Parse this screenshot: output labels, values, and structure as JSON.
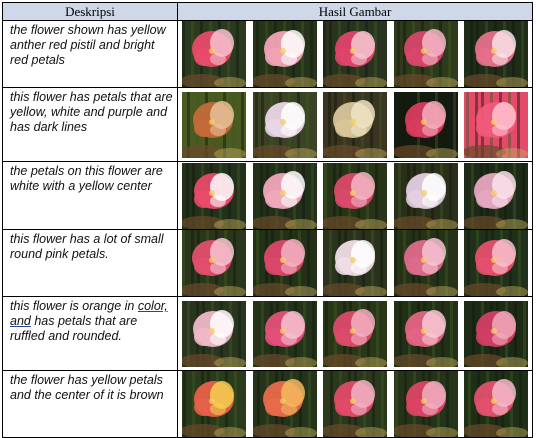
{
  "header": {
    "col1": "Deskripsi",
    "col2": "Hasil Gambar"
  },
  "rows": [
    {
      "description": "the flower shown has yellow anther red pistil and bright red petals",
      "images": [
        {
          "petal": "#e84a6a",
          "accent": "#f7c2cf",
          "bg": "#2b3a1e"
        },
        {
          "petal": "#f3a3b6",
          "accent": "#ffffff",
          "bg": "#253319"
        },
        {
          "petal": "#e0446a",
          "accent": "#f6c8d3",
          "bg": "#2a3320"
        },
        {
          "petal": "#d8466c",
          "accent": "#f5b8c8",
          "bg": "#2f3a1c"
        },
        {
          "petal": "#e6708c",
          "accent": "#fbe3e8",
          "bg": "#1f2c18"
        }
      ]
    },
    {
      "description": "this flower has petals that are yellow, white and purple and has dark lines",
      "images": [
        {
          "petal": "#c46a3a",
          "accent": "#e8c29a",
          "bg": "#4a5a20"
        },
        {
          "petal": "#e9d6e6",
          "accent": "#ffffff",
          "bg": "#3b4226"
        },
        {
          "petal": "#d7c59a",
          "accent": "#efe4c4",
          "bg": "#3a3420"
        },
        {
          "petal": "#d83c5e",
          "accent": "#f3b0c0",
          "bg": "#151a10"
        },
        {
          "petal": "#f05a7a",
          "accent": "#ffc3d0",
          "bg": "#e44a6a"
        }
      ]
    },
    {
      "description": "the petals on this flower are white with a yellow center",
      "images": [
        {
          "petal": "#e84a6a",
          "accent": "#ffffff",
          "bg": "#23301a"
        },
        {
          "petal": "#f0a8bb",
          "accent": "#ffffff",
          "bg": "#22301a"
        },
        {
          "petal": "#d94a6a",
          "accent": "#f2b8c6",
          "bg": "#283418"
        },
        {
          "petal": "#e4cfe0",
          "accent": "#ffffff",
          "bg": "#2a2f1c"
        },
        {
          "petal": "#e6a6c0",
          "accent": "#fbe3ee",
          "bg": "#1d2a17"
        }
      ]
    },
    {
      "description": "this flower has a lot of small round pink petals.",
      "images": [
        {
          "petal": "#e24e6e",
          "accent": "#f8c6d2",
          "bg": "#29361c"
        },
        {
          "petal": "#dc476a",
          "accent": "#f4b4c4",
          "bg": "#243119"
        },
        {
          "petal": "#efdde6",
          "accent": "#ffffff",
          "bg": "#2a321d"
        },
        {
          "petal": "#dd6c8c",
          "accent": "#f6c6d4",
          "bg": "#263218"
        },
        {
          "petal": "#e6506e",
          "accent": "#f9c2cf",
          "bg": "#20301a"
        }
      ]
    },
    {
      "description_parts": [
        "this flower is orange in ",
        "color, and",
        " has petals that are ruffled and rounded."
      ],
      "images": [
        {
          "petal": "#f0b8c8",
          "accent": "#ffffff",
          "bg": "#2a3520"
        },
        {
          "petal": "#e4507a",
          "accent": "#f7c3d2",
          "bg": "#243219"
        },
        {
          "petal": "#dc4a6c",
          "accent": "#f3b2c3",
          "bg": "#2a3618"
        },
        {
          "petal": "#e36484",
          "accent": "#f8cad6",
          "bg": "#233018"
        },
        {
          "petal": "#d23e66",
          "accent": "#f1aabc",
          "bg": "#1d2b16"
        }
      ]
    },
    {
      "description": "the flower has yellow petals and the center of it is brown",
      "images": [
        {
          "petal": "#e8604a",
          "accent": "#f4d050",
          "bg": "#2a3a1c"
        },
        {
          "petal": "#e86a4a",
          "accent": "#f5b860",
          "bg": "#24331a"
        },
        {
          "petal": "#e04a68",
          "accent": "#f2b4c4",
          "bg": "#2b381c"
        },
        {
          "petal": "#dc4466",
          "accent": "#f1b0c2",
          "bg": "#253318"
        },
        {
          "petal": "#e2506e",
          "accent": "#f5bccb",
          "bg": "#1f2e17"
        }
      ]
    }
  ]
}
